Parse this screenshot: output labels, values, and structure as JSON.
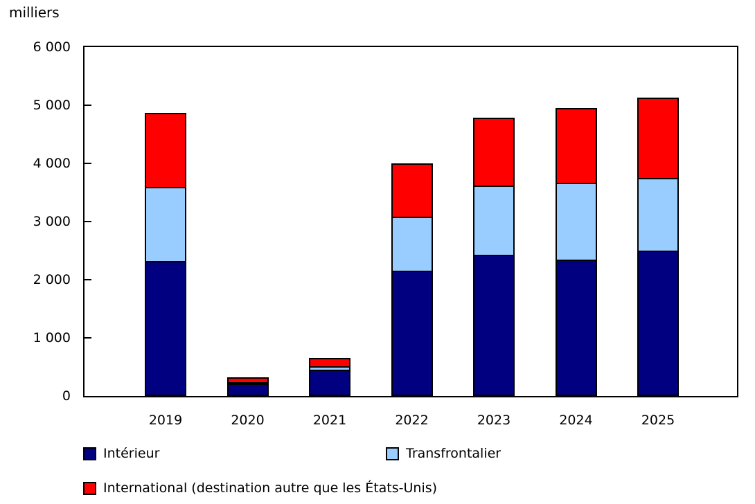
{
  "chart_data": {
    "type": "bar",
    "stacked": true,
    "unit_label": "milliers",
    "categories": [
      "2019",
      "2020",
      "2021",
      "2022",
      "2023",
      "2024",
      "2025"
    ],
    "series": [
      {
        "name": "Intérieur",
        "color": "#000080",
        "values": [
          2320,
          210,
          455,
          2155,
          2430,
          2340,
          2495
        ]
      },
      {
        "name": "Transfrontalier",
        "color": "#99CCFF",
        "values": [
          1280,
          30,
          60,
          925,
          1190,
          1330,
          1260
        ]
      },
      {
        "name": "International (destination autre que les États-Unis)",
        "color": "#FF0000",
        "values": [
          1270,
          85,
          135,
          920,
          1170,
          1285,
          1380
        ]
      }
    ],
    "totals": [
      4870,
      325,
      650,
      4000,
      4790,
      4955,
      5135
    ],
    "ylim": [
      0,
      6000
    ],
    "ytick_values": [
      0,
      1000,
      2000,
      3000,
      4000,
      5000,
      6000
    ],
    "ytick_labels": [
      "0",
      "1 000",
      "2 000",
      "3 000",
      "4 000",
      "5 000",
      "6 000"
    ],
    "grid": false,
    "legend_position": "bottom",
    "axis_color": "#000000",
    "background_color": "#FFFFFF"
  }
}
